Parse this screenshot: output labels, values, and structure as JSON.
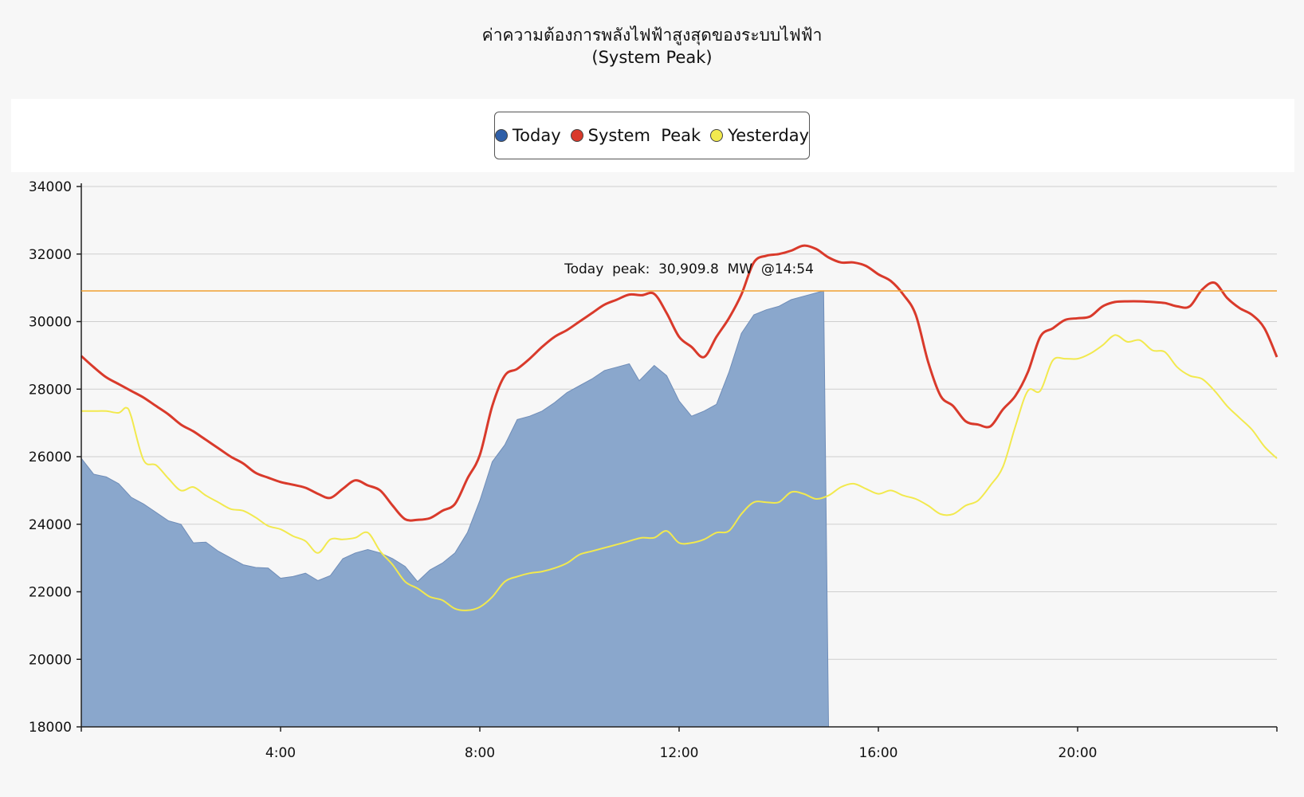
{
  "chart_data": {
    "type": "area",
    "title": "ค่าความต้องการพลังไฟฟ้าสูงสุดของระบบไฟฟ้า",
    "subtitle": "(System Peak)",
    "xlabel": "",
    "ylabel": "",
    "xlim": [
      0,
      24
    ],
    "ylim": [
      18000,
      34000
    ],
    "yticks": [
      34000,
      32000,
      30000,
      28000,
      26000,
      24000,
      22000,
      20000,
      18000
    ],
    "xticks": [
      {
        "value": 4,
        "label": "4:00"
      },
      {
        "value": 8,
        "label": "8:00"
      },
      {
        "value": 12,
        "label": "12:00"
      },
      {
        "value": 16,
        "label": "16:00"
      },
      {
        "value": 20,
        "label": "20:00"
      }
    ],
    "grid": true,
    "legend_position": "top-center",
    "series": [
      {
        "name": "Today",
        "style": "area",
        "color": "#2f5fa8",
        "fill": "#8aa7cc",
        "points": [
          [
            0,
            25950
          ],
          [
            0.25,
            25480
          ],
          [
            0.5,
            25400
          ],
          [
            0.75,
            25200
          ],
          [
            1,
            24800
          ],
          [
            1.25,
            24600
          ],
          [
            1.5,
            24350
          ],
          [
            1.75,
            24100
          ],
          [
            2,
            24000
          ],
          [
            2.25,
            23450
          ],
          [
            2.5,
            23470
          ],
          [
            2.75,
            23200
          ],
          [
            3,
            23000
          ],
          [
            3.25,
            22800
          ],
          [
            3.5,
            22720
          ],
          [
            3.75,
            22700
          ],
          [
            4,
            22400
          ],
          [
            4.25,
            22450
          ],
          [
            4.5,
            22550
          ],
          [
            4.75,
            22330
          ],
          [
            5,
            22480
          ],
          [
            5.25,
            22980
          ],
          [
            5.5,
            23150
          ],
          [
            5.75,
            23250
          ],
          [
            6,
            23150
          ],
          [
            6.25,
            22980
          ],
          [
            6.5,
            22750
          ],
          [
            6.75,
            22300
          ],
          [
            7,
            22650
          ],
          [
            7.25,
            22850
          ],
          [
            7.5,
            23150
          ],
          [
            7.75,
            23750
          ],
          [
            8,
            24700
          ],
          [
            8.25,
            25850
          ],
          [
            8.5,
            26350
          ],
          [
            8.75,
            27100
          ],
          [
            9,
            27200
          ],
          [
            9.25,
            27350
          ],
          [
            9.5,
            27600
          ],
          [
            9.75,
            27900
          ],
          [
            10,
            28100
          ],
          [
            10.25,
            28300
          ],
          [
            10.5,
            28550
          ],
          [
            10.75,
            28650
          ],
          [
            11,
            28750
          ],
          [
            11.2,
            28250
          ],
          [
            11.5,
            28700
          ],
          [
            11.75,
            28400
          ],
          [
            12,
            27650
          ],
          [
            12.25,
            27200
          ],
          [
            12.5,
            27350
          ],
          [
            12.75,
            27550
          ],
          [
            13,
            28500
          ],
          [
            13.25,
            29650
          ],
          [
            13.5,
            30200
          ],
          [
            13.75,
            30350
          ],
          [
            14,
            30450
          ],
          [
            14.25,
            30650
          ],
          [
            14.5,
            30750
          ],
          [
            14.9,
            30910
          ],
          [
            15.0,
            18000
          ]
        ]
      },
      {
        "name": "System Peak",
        "style": "line",
        "color": "#d93a2b",
        "points": [
          [
            0,
            28980
          ],
          [
            0.25,
            28650
          ],
          [
            0.5,
            28350
          ],
          [
            0.75,
            28150
          ],
          [
            1,
            27950
          ],
          [
            1.25,
            27750
          ],
          [
            1.5,
            27500
          ],
          [
            1.75,
            27250
          ],
          [
            2,
            26950
          ],
          [
            2.25,
            26750
          ],
          [
            2.5,
            26500
          ],
          [
            2.75,
            26250
          ],
          [
            3,
            26000
          ],
          [
            3.25,
            25800
          ],
          [
            3.5,
            25520
          ],
          [
            3.75,
            25380
          ],
          [
            4,
            25250
          ],
          [
            4.25,
            25170
          ],
          [
            4.5,
            25080
          ],
          [
            4.75,
            24900
          ],
          [
            5,
            24780
          ],
          [
            5.25,
            25050
          ],
          [
            5.5,
            25300
          ],
          [
            5.75,
            25150
          ],
          [
            6,
            25000
          ],
          [
            6.25,
            24550
          ],
          [
            6.5,
            24150
          ],
          [
            6.75,
            24130
          ],
          [
            7,
            24180
          ],
          [
            7.25,
            24400
          ],
          [
            7.5,
            24600
          ],
          [
            7.75,
            25350
          ],
          [
            8,
            26050
          ],
          [
            8.25,
            27500
          ],
          [
            8.5,
            28400
          ],
          [
            8.75,
            28600
          ],
          [
            9,
            28900
          ],
          [
            9.25,
            29250
          ],
          [
            9.5,
            29550
          ],
          [
            9.75,
            29750
          ],
          [
            10,
            30000
          ],
          [
            10.25,
            30250
          ],
          [
            10.5,
            30500
          ],
          [
            10.75,
            30650
          ],
          [
            11,
            30800
          ],
          [
            11.25,
            30780
          ],
          [
            11.5,
            30820
          ],
          [
            11.75,
            30250
          ],
          [
            12,
            29550
          ],
          [
            12.25,
            29250
          ],
          [
            12.5,
            28950
          ],
          [
            12.75,
            29550
          ],
          [
            13,
            30100
          ],
          [
            13.25,
            30800
          ],
          [
            13.5,
            31750
          ],
          [
            13.75,
            31950
          ],
          [
            14,
            32000
          ],
          [
            14.25,
            32100
          ],
          [
            14.5,
            32250
          ],
          [
            14.75,
            32150
          ],
          [
            15,
            31900
          ],
          [
            15.25,
            31750
          ],
          [
            15.5,
            31750
          ],
          [
            15.75,
            31650
          ],
          [
            16,
            31400
          ],
          [
            16.25,
            31200
          ],
          [
            16.5,
            30800
          ],
          [
            16.75,
            30200
          ],
          [
            17,
            28800
          ],
          [
            17.25,
            27800
          ],
          [
            17.5,
            27500
          ],
          [
            17.75,
            27050
          ],
          [
            18,
            26950
          ],
          [
            18.25,
            26900
          ],
          [
            18.5,
            27400
          ],
          [
            18.75,
            27800
          ],
          [
            19,
            28500
          ],
          [
            19.25,
            29550
          ],
          [
            19.5,
            29800
          ],
          [
            19.75,
            30050
          ],
          [
            20,
            30100
          ],
          [
            20.25,
            30150
          ],
          [
            20.5,
            30450
          ],
          [
            20.75,
            30580
          ],
          [
            21,
            30600
          ],
          [
            21.25,
            30600
          ],
          [
            21.5,
            30580
          ],
          [
            21.75,
            30550
          ],
          [
            22,
            30450
          ],
          [
            22.25,
            30450
          ],
          [
            22.5,
            30950
          ],
          [
            22.75,
            31150
          ],
          [
            23,
            30700
          ],
          [
            23.25,
            30400
          ],
          [
            23.5,
            30200
          ],
          [
            23.75,
            29800
          ],
          [
            24,
            28950
          ]
        ]
      },
      {
        "name": "Yesterday",
        "style": "line",
        "color": "#f2e94e",
        "points": [
          [
            0,
            27350
          ],
          [
            0.25,
            27350
          ],
          [
            0.5,
            27350
          ],
          [
            0.75,
            27300
          ],
          [
            0.9,
            27450
          ],
          [
            1,
            27200
          ],
          [
            1.25,
            25900
          ],
          [
            1.5,
            25750
          ],
          [
            1.75,
            25350
          ],
          [
            2,
            25000
          ],
          [
            2.25,
            25100
          ],
          [
            2.5,
            24850
          ],
          [
            2.75,
            24650
          ],
          [
            3,
            24450
          ],
          [
            3.25,
            24400
          ],
          [
            3.5,
            24200
          ],
          [
            3.75,
            23950
          ],
          [
            4,
            23850
          ],
          [
            4.25,
            23650
          ],
          [
            4.5,
            23500
          ],
          [
            4.75,
            23150
          ],
          [
            5,
            23550
          ],
          [
            5.25,
            23550
          ],
          [
            5.5,
            23600
          ],
          [
            5.75,
            23750
          ],
          [
            6,
            23200
          ],
          [
            6.25,
            22800
          ],
          [
            6.5,
            22300
          ],
          [
            6.75,
            22100
          ],
          [
            7,
            21850
          ],
          [
            7.25,
            21750
          ],
          [
            7.5,
            21500
          ],
          [
            7.75,
            21450
          ],
          [
            8,
            21550
          ],
          [
            8.25,
            21850
          ],
          [
            8.5,
            22300
          ],
          [
            8.75,
            22450
          ],
          [
            9,
            22550
          ],
          [
            9.25,
            22600
          ],
          [
            9.5,
            22700
          ],
          [
            9.75,
            22850
          ],
          [
            10,
            23100
          ],
          [
            10.25,
            23200
          ],
          [
            10.5,
            23300
          ],
          [
            10.75,
            23400
          ],
          [
            11,
            23500
          ],
          [
            11.25,
            23600
          ],
          [
            11.5,
            23600
          ],
          [
            11.75,
            23800
          ],
          [
            12,
            23450
          ],
          [
            12.25,
            23450
          ],
          [
            12.5,
            23550
          ],
          [
            12.75,
            23750
          ],
          [
            13,
            23800
          ],
          [
            13.25,
            24300
          ],
          [
            13.5,
            24650
          ],
          [
            13.75,
            24650
          ],
          [
            14,
            24650
          ],
          [
            14.25,
            24950
          ],
          [
            14.5,
            24900
          ],
          [
            14.75,
            24750
          ],
          [
            15,
            24850
          ],
          [
            15.25,
            25100
          ],
          [
            15.5,
            25200
          ],
          [
            15.75,
            25050
          ],
          [
            16,
            24900
          ],
          [
            16.25,
            25000
          ],
          [
            16.5,
            24850
          ],
          [
            16.75,
            24750
          ],
          [
            17,
            24550
          ],
          [
            17.25,
            24300
          ],
          [
            17.5,
            24300
          ],
          [
            17.75,
            24550
          ],
          [
            18,
            24700
          ],
          [
            18.25,
            25150
          ],
          [
            18.5,
            25700
          ],
          [
            18.75,
            26900
          ],
          [
            19,
            27950
          ],
          [
            19.25,
            27950
          ],
          [
            19.5,
            28850
          ],
          [
            19.75,
            28900
          ],
          [
            20,
            28900
          ],
          [
            20.25,
            29050
          ],
          [
            20.5,
            29300
          ],
          [
            20.75,
            29600
          ],
          [
            21,
            29400
          ],
          [
            21.25,
            29450
          ],
          [
            21.5,
            29150
          ],
          [
            21.75,
            29100
          ],
          [
            22,
            28650
          ],
          [
            22.25,
            28400
          ],
          [
            22.5,
            28300
          ],
          [
            22.75,
            27950
          ],
          [
            23,
            27500
          ],
          [
            23.25,
            27150
          ],
          [
            23.5,
            26800
          ],
          [
            23.75,
            26300
          ],
          [
            24,
            25950
          ]
        ]
      }
    ],
    "reference_line": {
      "value": 30909.8,
      "color": "#f0a030",
      "label": "Today  peak:  30,909.8  MW  @14:54",
      "label_x": 12.2
    }
  },
  "legend": {
    "items": [
      {
        "label": "Today",
        "color": "#2f5fa8"
      },
      {
        "label": "System  Peak",
        "color": "#d93a2b"
      },
      {
        "label": "Yesterday",
        "color": "#f2e94e"
      }
    ]
  }
}
